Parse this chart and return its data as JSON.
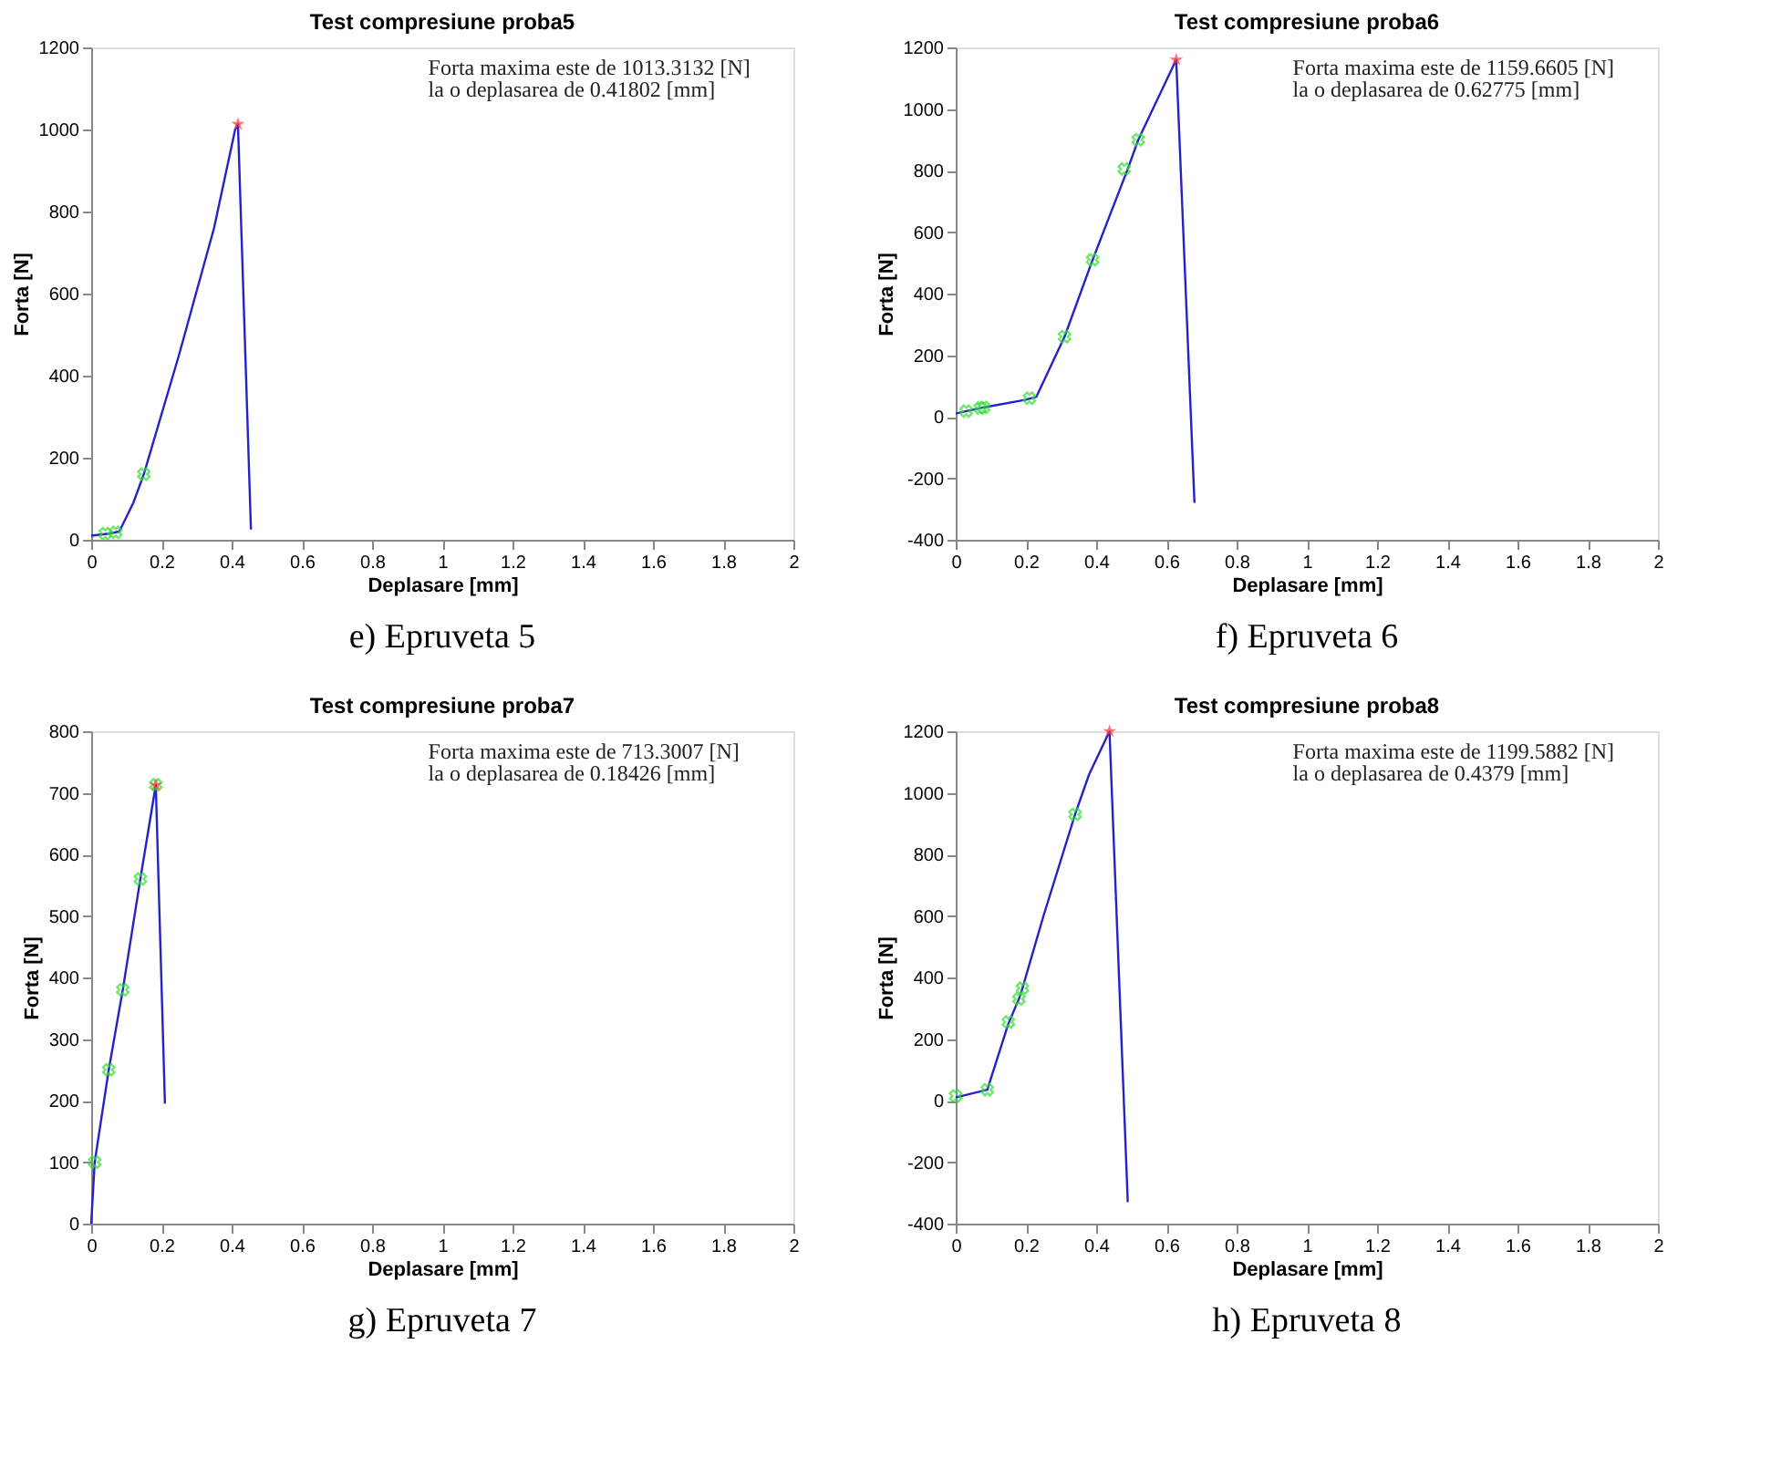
{
  "chart_data": [
    {
      "type": "line",
      "title": "Test compresiune proba5",
      "xlabel": "Deplasare [mm]",
      "ylabel": "Forta [N]",
      "xlim": [
        0,
        2
      ],
      "xticks": [
        0,
        0.2,
        0.4,
        0.6,
        0.8,
        1,
        1.2,
        1.4,
        1.6,
        1.8,
        2
      ],
      "ylim": [
        0,
        1200
      ],
      "yticks": [
        0,
        200,
        400,
        600,
        800,
        1000,
        1200
      ],
      "grid": false,
      "annotations": [
        "Forta maxima este de 1013.3132 [N]",
        "la o deplasarea de 0.41802 [mm]",
        "e)   Epruveta 5"
      ],
      "series": [
        {
          "color": "#2323c8",
          "marker": "none",
          "x": [
            0,
            0.05,
            0.08,
            0.12,
            0.15,
            0.25,
            0.35,
            0.41,
            0.418,
            0.455
          ],
          "values": [
            10,
            15,
            20,
            90,
            160,
            450,
            760,
            1000,
            1013,
            25
          ]
        },
        {
          "type": "scatter",
          "color": "#33dd33",
          "marker": "cross",
          "x": [
            0.04,
            0.07,
            0.15
          ],
          "values": [
            15,
            18,
            160
          ]
        },
        {
          "type": "scatter",
          "color": "#ff3333",
          "marker": "star",
          "x": [
            0.418
          ],
          "values": [
            1013
          ]
        }
      ]
    },
    {
      "type": "line",
      "title": "Test compresiune proba6",
      "xlabel": "Deplasare [mm]",
      "ylabel": "Forta [N]",
      "xlim": [
        0,
        2
      ],
      "xticks": [
        0,
        0.2,
        0.4,
        0.6,
        0.8,
        1,
        1.2,
        1.4,
        1.6,
        1.8,
        2
      ],
      "ylim": [
        -400,
        1200
      ],
      "yticks": [
        -400,
        -200,
        0,
        200,
        400,
        600,
        800,
        1000,
        1200
      ],
      "grid": false,
      "annotations": [
        "Forta maxima este de 1159.6605 [N]",
        "la o deplasarea de 0.62775 [mm]",
        "f)   Epruveta 6"
      ],
      "series": [
        {
          "color": "#2323c8",
          "marker": "none",
          "x": [
            0,
            0.03,
            0.07,
            0.2,
            0.23,
            0.31,
            0.39,
            0.49,
            0.52,
            0.628,
            0.68
          ],
          "values": [
            10,
            18,
            28,
            55,
            65,
            260,
            510,
            805,
            900,
            1160,
            -280
          ]
        },
        {
          "type": "scatter",
          "color": "#33dd33",
          "marker": "cross",
          "x": [
            0.03,
            0.07,
            0.08,
            0.21,
            0.31,
            0.39,
            0.48,
            0.52
          ],
          "values": [
            18,
            28,
            30,
            60,
            260,
            510,
            805,
            900
          ]
        },
        {
          "type": "scatter",
          "color": "#ff3333",
          "marker": "star",
          "x": [
            0.628
          ],
          "values": [
            1160
          ]
        }
      ]
    },
    {
      "type": "line",
      "title": "Test compresiune proba7",
      "xlabel": "Deplasare [mm]",
      "ylabel": "Forta [N]",
      "xlim": [
        0,
        2
      ],
      "xticks": [
        0,
        0.2,
        0.4,
        0.6,
        0.8,
        1,
        1.2,
        1.4,
        1.6,
        1.8,
        2
      ],
      "ylim": [
        0,
        800
      ],
      "yticks": [
        0,
        100,
        200,
        300,
        400,
        500,
        600,
        700,
        800
      ],
      "grid": false,
      "annotations": [
        "Forta maxima este de 713.3007 [N]",
        "la o deplasarea de 0.18426 [mm]",
        "g)   Epruveta 7"
      ],
      "series": [
        {
          "color": "#2323c8",
          "marker": "none",
          "x": [
            0,
            0.01,
            0.05,
            0.09,
            0.14,
            0.184,
            0.21
          ],
          "values": [
            0,
            100,
            250,
            380,
            560,
            713,
            195
          ]
        },
        {
          "type": "scatter",
          "color": "#33dd33",
          "marker": "cross",
          "x": [
            0.01,
            0.05,
            0.09,
            0.14,
            0.184
          ],
          "values": [
            100,
            250,
            380,
            560,
            713
          ]
        },
        {
          "type": "scatter",
          "color": "#ff3333",
          "marker": "star",
          "x": [
            0.184
          ],
          "values": [
            713
          ]
        }
      ]
    },
    {
      "type": "line",
      "title": "Test compresiune proba8",
      "xlabel": "Deplasare [mm]",
      "ylabel": "Forta [N]",
      "xlim": [
        0,
        2
      ],
      "xticks": [
        0,
        0.2,
        0.4,
        0.6,
        0.8,
        1,
        1.2,
        1.4,
        1.6,
        1.8,
        2
      ],
      "ylim": [
        -400,
        1200
      ],
      "yticks": [
        -400,
        -200,
        0,
        200,
        400,
        600,
        800,
        1000,
        1200
      ],
      "grid": false,
      "annotations": [
        "Forta maxima este de 1199.5882 [N]",
        "la o deplasarea de 0.4379 [mm]",
        "h)   Epruveta 8"
      ],
      "series": [
        {
          "color": "#2323c8",
          "marker": "none",
          "x": [
            0,
            0.09,
            0.15,
            0.18,
            0.19,
            0.25,
            0.34,
            0.38,
            0.438,
            0.49
          ],
          "values": [
            10,
            35,
            250,
            330,
            365,
            600,
            930,
            1060,
            1200,
            -330
          ]
        },
        {
          "type": "scatter",
          "color": "#33dd33",
          "marker": "cross",
          "x": [
            0,
            0.09,
            0.15,
            0.18,
            0.19,
            0.34
          ],
          "values": [
            15,
            35,
            255,
            330,
            365,
            930
          ]
        },
        {
          "type": "scatter",
          "color": "#ff3333",
          "marker": "star",
          "x": [
            0.438
          ],
          "values": [
            1200
          ]
        }
      ]
    }
  ]
}
